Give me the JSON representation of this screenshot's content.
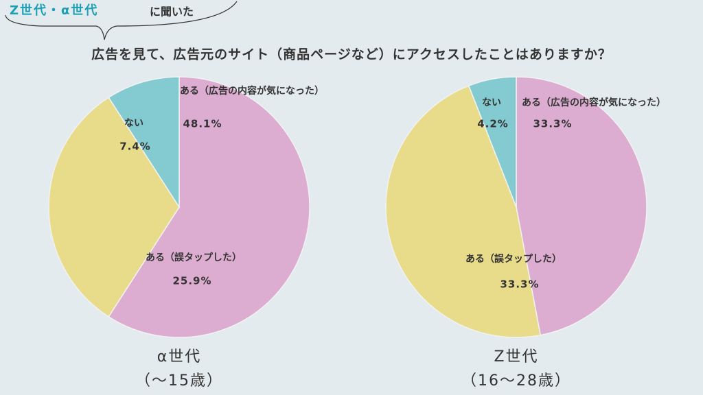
{
  "header": {
    "tag": "Z世代・α世代",
    "tag_suffix": "に聞いた",
    "question": "広告を見て、広告元のサイト（商品ページなど）にアクセスしたことはありますか？"
  },
  "chart_data": [
    {
      "type": "pie",
      "title": "α世代",
      "subtitle": "（〜15歳）",
      "categories": [
        "ある（広告の内容が気になった）",
        "ある（誤タップした）",
        "ない"
      ],
      "values": [
        48.1,
        25.9,
        7.4
      ],
      "value_labels": [
        "48.1%",
        "25.9%",
        "7.4%"
      ],
      "colors": [
        "#dcadd0",
        "#e8dc8a",
        "#83cbd1"
      ]
    },
    {
      "type": "pie",
      "title": "Z世代",
      "subtitle": "（16〜28歳）",
      "categories": [
        "ある（広告の内容が気になった）",
        "ある（誤タップした）",
        "ない"
      ],
      "values": [
        33.3,
        33.3,
        4.2
      ],
      "value_labels": [
        "33.3%",
        "33.3%",
        "4.2%"
      ],
      "colors": [
        "#dcadd0",
        "#e8dc8a",
        "#83cbd1"
      ]
    }
  ]
}
